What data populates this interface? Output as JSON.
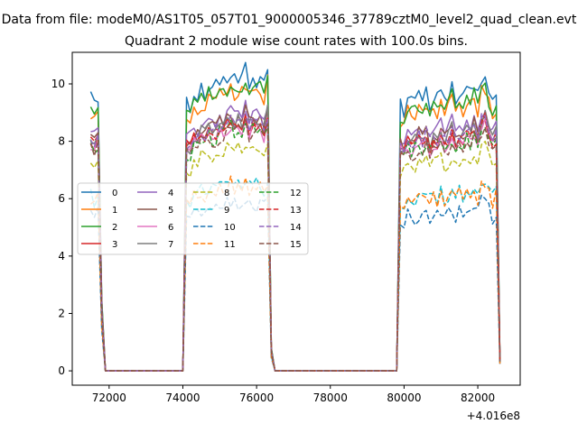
{
  "figure": {
    "suptitle": "Data from file: modeM0/AS1T05_057T01_9000005346_37789cztM0_level2_quad_clean.evt",
    "title": "Quadrant 2 module wise count rates with 100.0s bins.",
    "x_offset_label": "+4.016e8"
  },
  "chart_data": {
    "type": "line",
    "title": "Quadrant 2 module wise count rates with 100.0s bins.",
    "xlabel": "",
    "ylabel": "",
    "x_offset": 401600000,
    "xlim": [
      71000,
      83150
    ],
    "ylim": [
      -0.5,
      11.1
    ],
    "xticks": [
      72000,
      74000,
      76000,
      78000,
      80000,
      82000
    ],
    "xtick_labels": [
      "72000",
      "74000",
      "76000",
      "78000",
      "80000",
      "82000"
    ],
    "yticks": [
      0,
      2,
      4,
      6,
      8,
      10
    ],
    "ytick_labels": [
      "0",
      "2",
      "4",
      "6",
      "8",
      "10"
    ],
    "grid": false,
    "legend_placement": "center-left",
    "legend_columns": 4,
    "bin_size_s": 100,
    "segments": [
      {
        "start": 71500,
        "end": 71900,
        "values": [
          9.5,
          9.3,
          9.6,
          2.5,
          0
        ]
      },
      {
        "start": 74000,
        "end": 76500,
        "values": [
          0,
          9.3,
          9.2,
          9.6,
          9.5,
          9.8,
          9.7,
          10.0,
          9.8,
          9.9,
          10.1,
          10.0,
          10.2,
          10.4,
          10.1,
          10.3,
          10.2,
          10.5,
          10.0,
          10.2,
          10.1,
          10.3,
          9.9,
          10.6,
          0.8,
          0
        ]
      },
      {
        "start": 79800,
        "end": 82600,
        "values": [
          0,
          9.2,
          9.1,
          9.5,
          9.3,
          9.4,
          9.6,
          9.4,
          9.7,
          9.3,
          9.6,
          9.5,
          9.8,
          9.4,
          9.6,
          9.9,
          9.5,
          9.7,
          9.6,
          9.8,
          9.7,
          10.0,
          9.6,
          10.3,
          10.4,
          9.8,
          9.4,
          9.7,
          0.4
        ]
      }
    ],
    "series": [
      {
        "name": "0",
        "color": "#1f77b4",
        "style": "solid",
        "scale": 1.0
      },
      {
        "name": "1",
        "color": "#ff7f0e",
        "style": "solid",
        "scale": 0.95
      },
      {
        "name": "2",
        "color": "#2ca02c",
        "style": "solid",
        "scale": 0.965
      },
      {
        "name": "3",
        "color": "#d62728",
        "style": "solid",
        "scale": 0.84
      },
      {
        "name": "4",
        "color": "#9467bd",
        "style": "solid",
        "scale": 0.88
      },
      {
        "name": "5",
        "color": "#8c564b",
        "style": "solid",
        "scale": 0.86
      },
      {
        "name": "6",
        "color": "#e377c2",
        "style": "solid",
        "scale": 0.83
      },
      {
        "name": "7",
        "color": "#7f7f7f",
        "style": "solid",
        "scale": 0.85
      },
      {
        "name": "8",
        "color": "#bcbd22",
        "style": "dashed",
        "scale": 0.76
      },
      {
        "name": "9",
        "color": "#17becf",
        "style": "dashed",
        "scale": 0.64
      },
      {
        "name": "10",
        "color": "#1f77b4",
        "style": "dashed",
        "scale": 0.57
      },
      {
        "name": "11",
        "color": "#ff7f0e",
        "style": "dashed",
        "scale": 0.63
      },
      {
        "name": "12",
        "color": "#2ca02c",
        "style": "dashed",
        "scale": 0.82
      },
      {
        "name": "13",
        "color": "#d62728",
        "style": "dashed",
        "scale": 0.84
      },
      {
        "name": "14",
        "color": "#9467bd",
        "style": "dashed",
        "scale": 0.85
      },
      {
        "name": "15",
        "color": "#8c564b",
        "style": "dashed",
        "scale": 0.81
      }
    ]
  }
}
